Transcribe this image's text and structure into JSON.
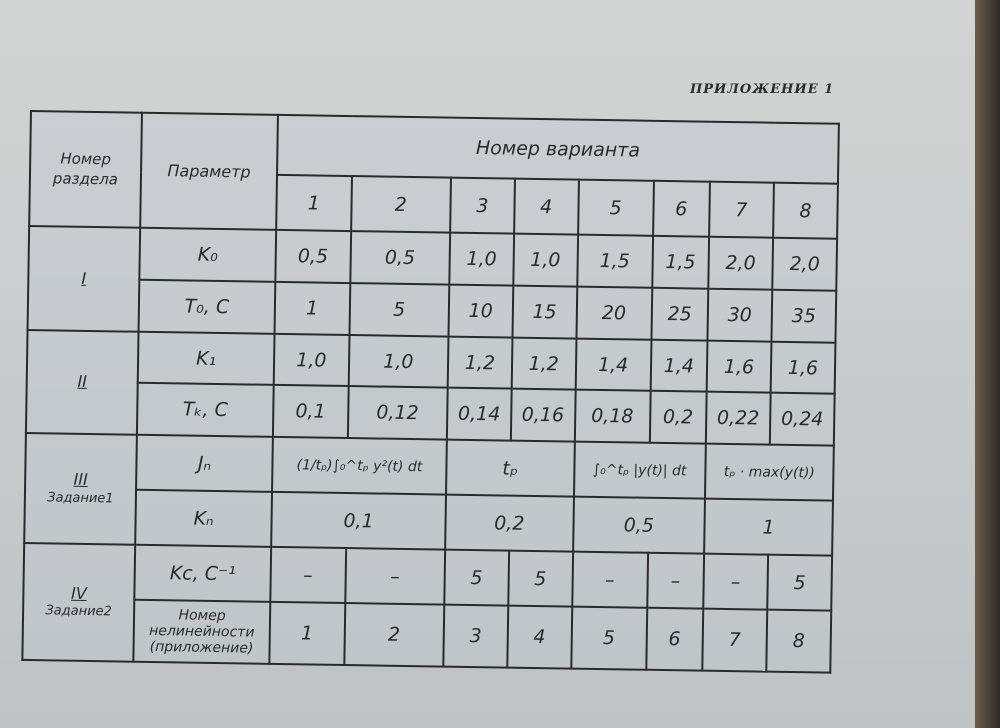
{
  "title": "ПРИЛОЖЕНИЕ 1",
  "table": {
    "header": {
      "section": "Номер раздела",
      "parameter": "Параметр",
      "variant": "Номер варианта",
      "variants": [
        "1",
        "2",
        "3",
        "4",
        "5",
        "6",
        "7",
        "8"
      ]
    },
    "sections": [
      {
        "label": "I",
        "rows": [
          {
            "param": "K₀",
            "cells": [
              {
                "v": "0,5",
                "span": 1
              },
              {
                "v": "0,5",
                "span": 1
              },
              {
                "v": "1,0",
                "span": 1
              },
              {
                "v": "1,0",
                "span": 1
              },
              {
                "v": "1,5",
                "span": 1
              },
              {
                "v": "1,5",
                "span": 1
              },
              {
                "v": "2,0",
                "span": 1
              },
              {
                "v": "2,0",
                "span": 1
              }
            ]
          },
          {
            "param": "T₀, C",
            "cells": [
              {
                "v": "1",
                "span": 1
              },
              {
                "v": "5",
                "span": 1
              },
              {
                "v": "10",
                "span": 1
              },
              {
                "v": "15",
                "span": 1
              },
              {
                "v": "20",
                "span": 1
              },
              {
                "v": "25",
                "span": 1
              },
              {
                "v": "30",
                "span": 1
              },
              {
                "v": "35",
                "span": 1
              }
            ]
          }
        ]
      },
      {
        "label": "II",
        "rows": [
          {
            "param": "K₁",
            "cells": [
              {
                "v": "1,0",
                "span": 1
              },
              {
                "v": "1,0",
                "span": 1
              },
              {
                "v": "1,2",
                "span": 1
              },
              {
                "v": "1,2",
                "span": 1
              },
              {
                "v": "1,4",
                "span": 1
              },
              {
                "v": "1,4",
                "span": 1
              },
              {
                "v": "1,6",
                "span": 1
              },
              {
                "v": "1,6",
                "span": 1
              }
            ]
          },
          {
            "param": "Tₖ, C",
            "cells": [
              {
                "v": "0,1",
                "span": 1
              },
              {
                "v": "0,12",
                "span": 1
              },
              {
                "v": "0,14",
                "span": 1
              },
              {
                "v": "0,16",
                "span": 1
              },
              {
                "v": "0,18",
                "span": 1
              },
              {
                "v": "0,2",
                "span": 1
              },
              {
                "v": "0,22",
                "span": 1
              },
              {
                "v": "0,24",
                "span": 1
              }
            ]
          }
        ]
      },
      {
        "label": "III",
        "sublabel": "Задание1",
        "rows": [
          {
            "param": "Jₙ",
            "cells": [
              {
                "v": "(1/tₚ)∫₀^tₚ y²(t) dt",
                "span": 2
              },
              {
                "v": "tₚ",
                "span": 2
              },
              {
                "v": "∫₀^tₚ |y(t)| dt",
                "span": 2
              },
              {
                "v": "tₚ · max(y(t))",
                "span": 2
              }
            ]
          },
          {
            "param": "Kₙ",
            "cells": [
              {
                "v": "0,1",
                "span": 2
              },
              {
                "v": "0,2",
                "span": 2
              },
              {
                "v": "0,5",
                "span": 2
              },
              {
                "v": "1",
                "span": 2
              }
            ]
          }
        ]
      },
      {
        "label": "IV",
        "sublabel": "Задание2",
        "rows": [
          {
            "param": "Kc, C⁻¹",
            "cells": [
              {
                "v": "–",
                "span": 1
              },
              {
                "v": "–",
                "span": 1
              },
              {
                "v": "5",
                "span": 1
              },
              {
                "v": "5",
                "span": 1
              },
              {
                "v": "–",
                "span": 1
              },
              {
                "v": "–",
                "span": 1
              },
              {
                "v": "–",
                "span": 1
              },
              {
                "v": "5",
                "span": 1
              }
            ]
          },
          {
            "param": "Номер нелинейности (приложение)",
            "cells": [
              {
                "v": "1",
                "span": 1
              },
              {
                "v": "2",
                "span": 1
              },
              {
                "v": "3",
                "span": 1
              },
              {
                "v": "4",
                "span": 1
              },
              {
                "v": "5",
                "span": 1
              },
              {
                "v": "6",
                "span": 1
              },
              {
                "v": "7",
                "span": 1
              },
              {
                "v": "8",
                "span": 1
              }
            ]
          }
        ]
      }
    ]
  }
}
